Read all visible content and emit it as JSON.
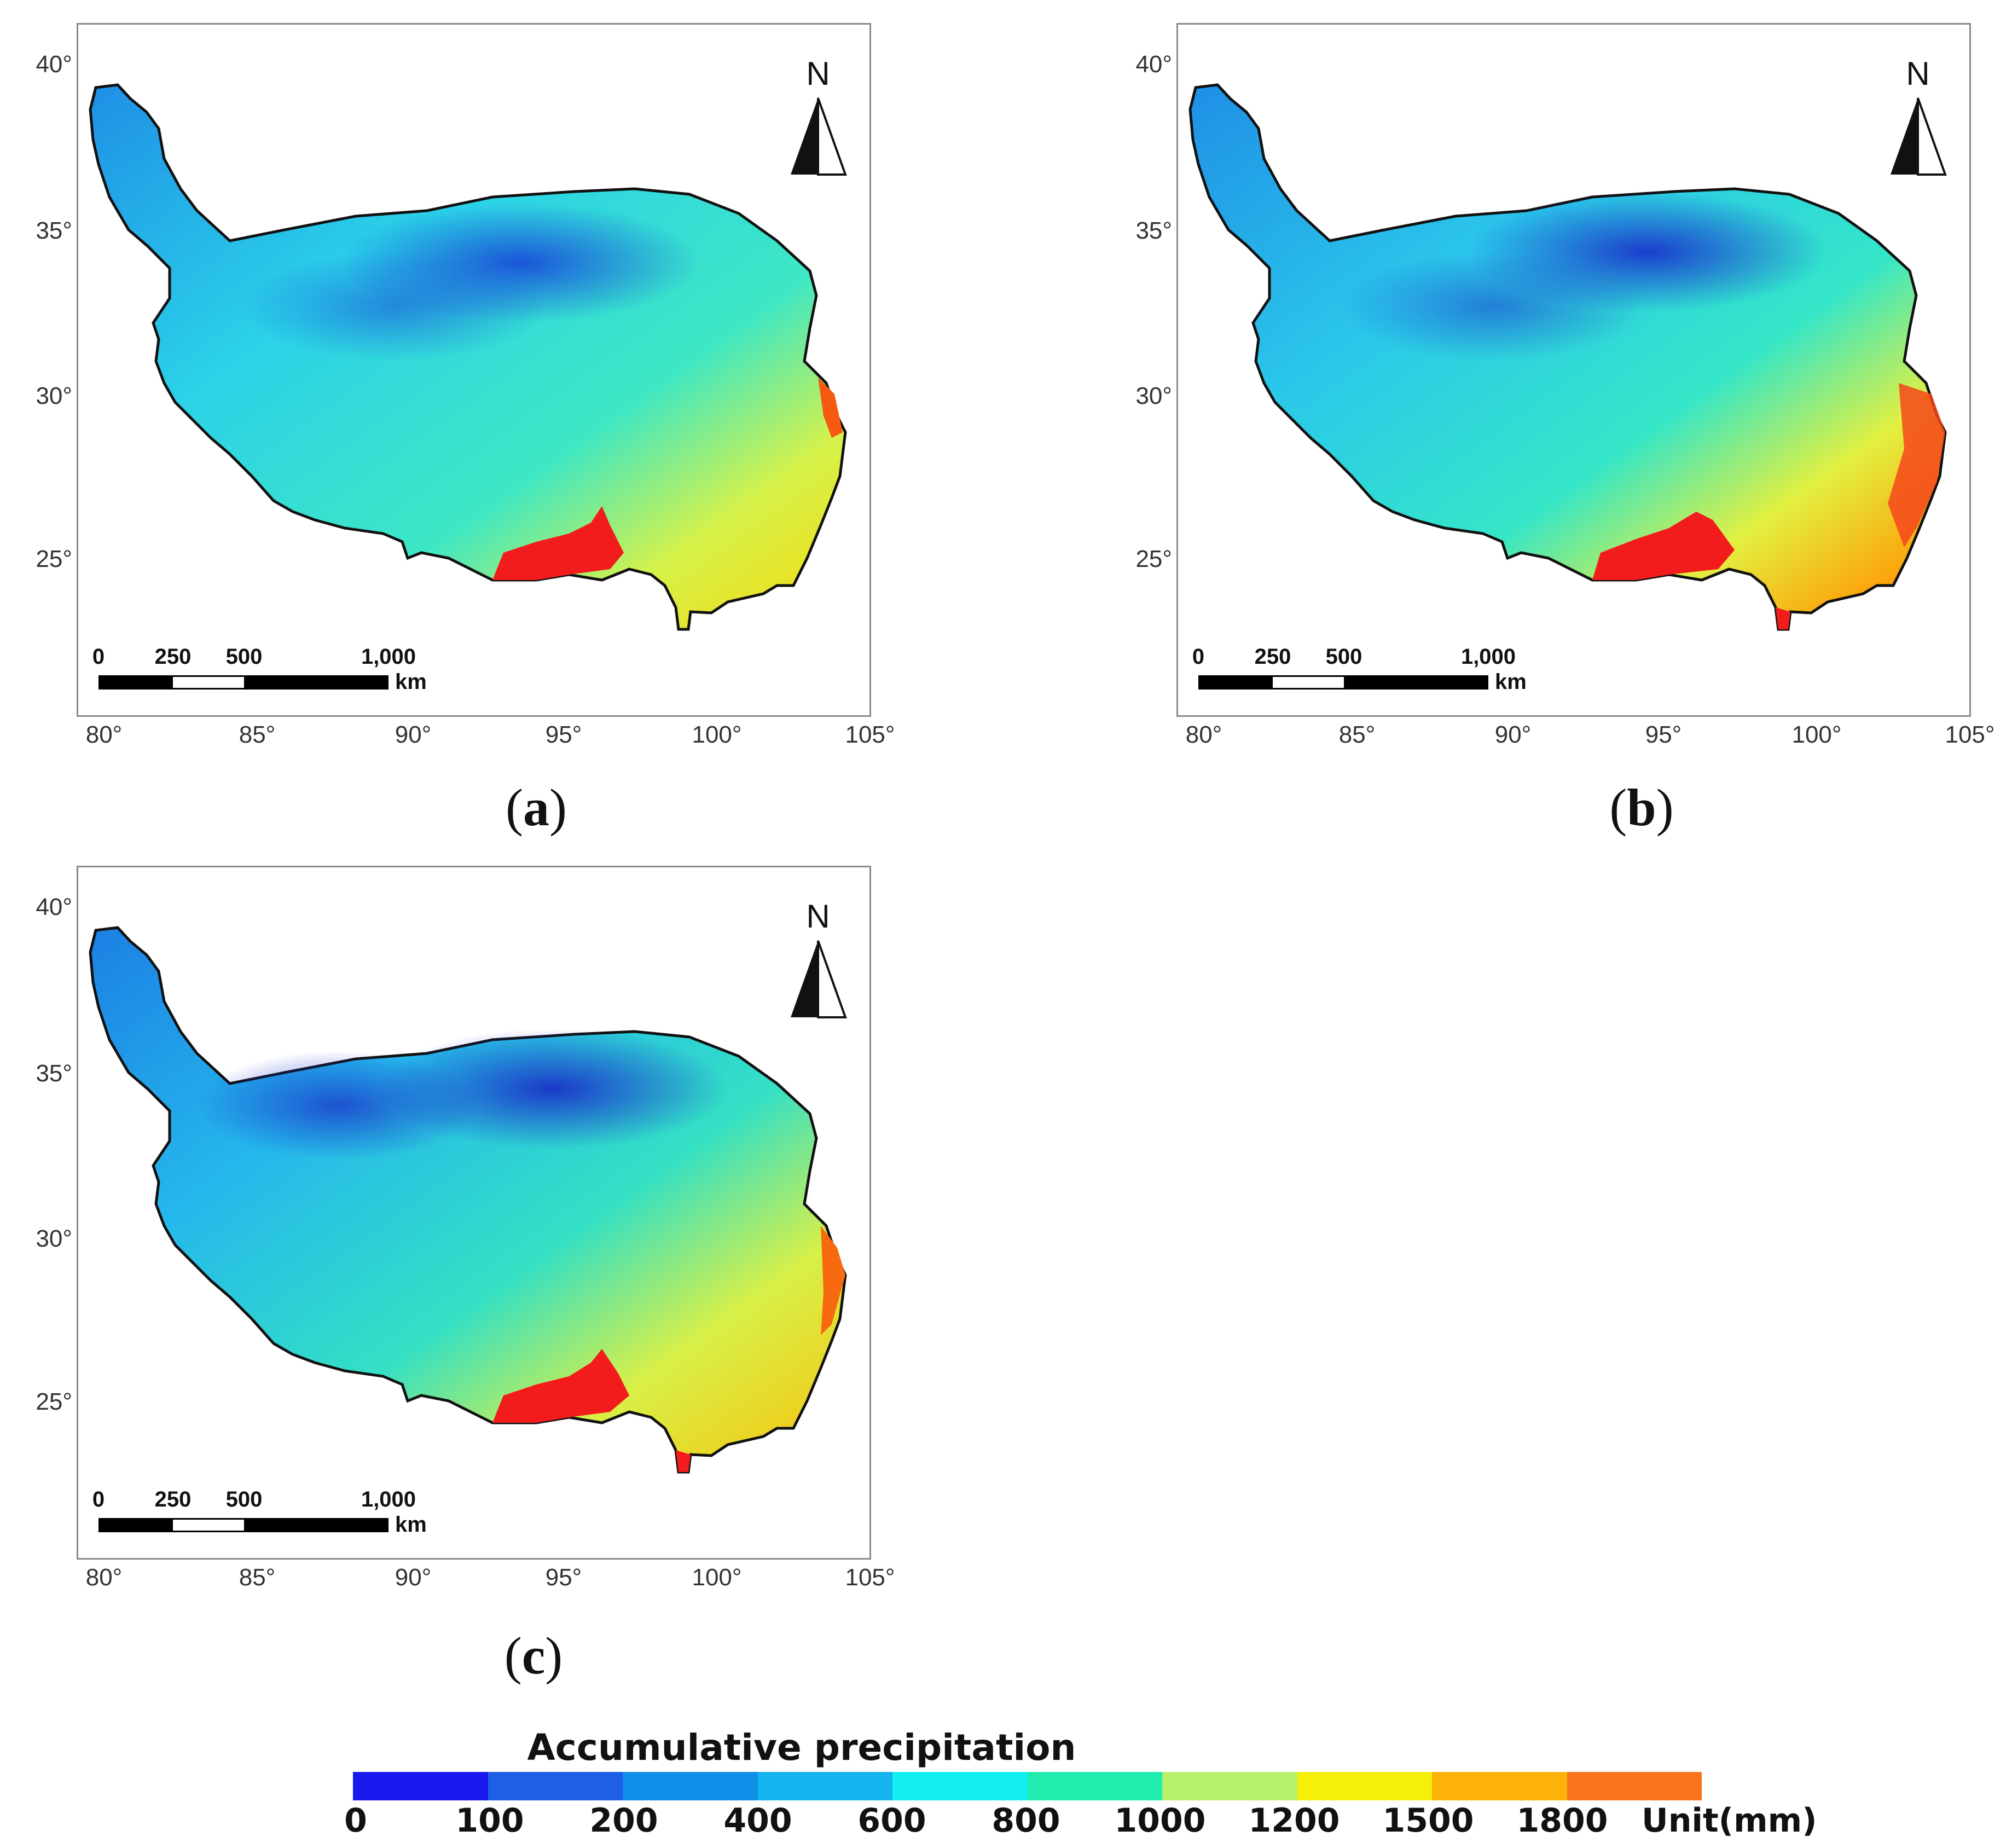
{
  "figure": {
    "panels": [
      {
        "id": "a",
        "caption": "a"
      },
      {
        "id": "b",
        "caption": "b"
      },
      {
        "id": "c",
        "caption": "c"
      }
    ],
    "y_axis_labels": [
      "40°",
      "35°",
      "30°",
      "25°"
    ],
    "x_axis_labels": [
      "80°",
      "85°",
      "90°",
      "95°",
      "100°",
      "105°"
    ],
    "north_arrow_label": "N",
    "scale_bar": {
      "ticks": [
        "0",
        "250",
        "500",
        "1,000"
      ],
      "unit": "km"
    }
  },
  "legend": {
    "title": "Accumulative precipitation",
    "tick_labels": [
      "0",
      "100",
      "200",
      "400",
      "600",
      "800",
      "1000",
      "1200",
      "1500",
      "1800"
    ],
    "unit_label": "Unit(mm)",
    "colors": [
      "#1a1aee",
      "#1f5fe6",
      "#0f8fe8",
      "#14b5f0",
      "#13eef0",
      "#21ecad",
      "#b7f06a",
      "#f5ef0a",
      "#fdb20a",
      "#f8741a",
      "#f31c1c"
    ]
  },
  "colors": {
    "frame": "#8a8a8a",
    "outline": "#111111",
    "low_blue": "#1d63e0",
    "mid_cyan": "#30d4e6",
    "high_red": "#f31c1c"
  }
}
